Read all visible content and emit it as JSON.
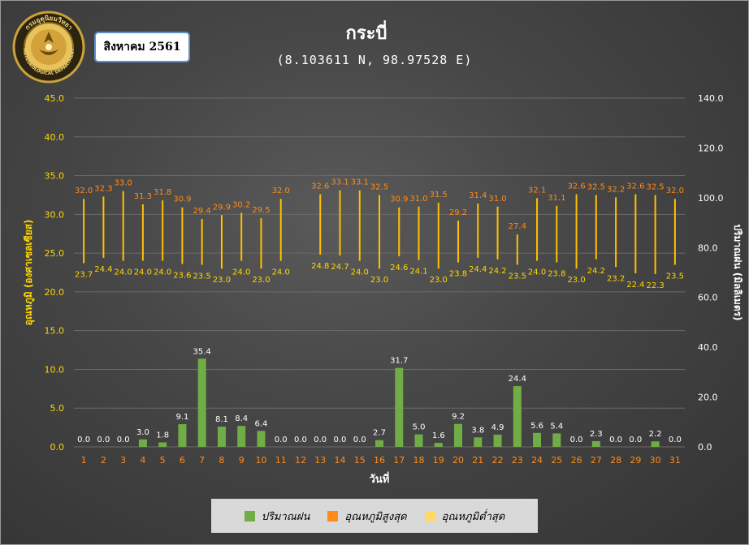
{
  "header": {
    "title": "กระบี่",
    "subtitle": "(8.103611 N, 98.97528 E)",
    "month_label": "สิงหาคม 2561",
    "logo_text_top": "กรมอุตุนิยมวิทยา",
    "logo_text_bottom": "METEOROLOGICAL DEPARTMENT"
  },
  "legend": {
    "items": [
      {
        "label": "ปริมาณฝน",
        "color": "#70ad47"
      },
      {
        "label": "อุณหภูมิสูงสุด",
        "color": "#ff8c1a"
      },
      {
        "label": "อุณหภูมิต่ำสุด",
        "color": "#ffd966"
      }
    ]
  },
  "chart_data": {
    "type": "bar",
    "xlabel": "วันที่",
    "ylabel_left": "อุณหภูมิ (องศาเซลเซียส)",
    "ylabel_right": "ปริมาณฝน (มิลลิเมตร)",
    "ylim_left": [
      0,
      45
    ],
    "ylim_right": [
      0,
      140
    ],
    "yticks_left": [
      "0.0",
      "5.0",
      "10.0",
      "15.0",
      "20.0",
      "25.0",
      "30.0",
      "35.0",
      "40.0",
      "45.0"
    ],
    "yticks_right": [
      "0.0",
      "20.0",
      "40.0",
      "60.0",
      "80.0",
      "100.0",
      "120.0",
      "140.0"
    ],
    "categories": [
      "1",
      "2",
      "3",
      "4",
      "5",
      "6",
      "7",
      "8",
      "9",
      "10",
      "11",
      "12",
      "13",
      "14",
      "15",
      "16",
      "17",
      "18",
      "19",
      "20",
      "21",
      "22",
      "23",
      "24",
      "25",
      "26",
      "27",
      "28",
      "29",
      "30",
      "31"
    ],
    "series": [
      {
        "name": "ปริมาณฝน",
        "axis": "right",
        "values": [
          0.0,
          0.0,
          0.0,
          3.0,
          1.8,
          9.1,
          35.4,
          8.1,
          8.4,
          6.4,
          0.0,
          0.0,
          0.0,
          0.0,
          0.0,
          2.7,
          31.7,
          5.0,
          1.6,
          9.2,
          3.8,
          4.9,
          24.4,
          5.6,
          5.4,
          0.0,
          2.3,
          0.0,
          0.0,
          2.2,
          0.0
        ],
        "labels": [
          "0.0",
          "0.0",
          "0.0",
          "3.0",
          "1.8",
          "9.1",
          "35.4",
          "8.1",
          "8.4",
          "6.4",
          "0.0",
          "0.0",
          "0.0",
          "0.0",
          "0.0",
          "2.7",
          "31.7",
          "5.0",
          "1.6",
          "9.2",
          "3.8",
          "4.9",
          "24.4",
          "5.6",
          "5.4",
          "0.0",
          "2.3",
          "0.0",
          "0.0",
          "2.2",
          "0.0"
        ]
      },
      {
        "name": "อุณหภูมิสูงสุด",
        "axis": "left",
        "values": [
          32.0,
          32.3,
          33.0,
          31.3,
          31.8,
          30.9,
          29.4,
          29.9,
          30.2,
          29.5,
          32.0,
          null,
          32.6,
          33.1,
          33.1,
          32.5,
          30.9,
          31.0,
          31.5,
          29.2,
          31.4,
          31.0,
          27.4,
          32.1,
          31.1,
          32.6,
          32.5,
          32.2,
          32.6,
          32.5,
          32.0
        ],
        "labels": [
          "32.0",
          "32.3",
          "33.0",
          "31.3",
          "31.8",
          "30.9",
          "29.4",
          "29.9",
          "30.2",
          "29.5",
          "32.0",
          "",
          "32.6",
          "33.1",
          "33.1",
          "32.5",
          "30.9",
          "31.0",
          "31.5",
          "29.2",
          "31.4",
          "31.0",
          "27.4",
          "32.1",
          "31.1",
          "32.6",
          "32.5",
          "32.2",
          "32.6",
          "32.5",
          "32.0"
        ]
      },
      {
        "name": "อุณหภูมิต่ำสุด",
        "axis": "left",
        "values": [
          23.7,
          24.4,
          24.0,
          24.0,
          24.0,
          23.6,
          23.5,
          23.0,
          24.0,
          23.0,
          24.0,
          null,
          24.8,
          24.7,
          24.0,
          23.0,
          24.6,
          24.1,
          23.0,
          23.8,
          24.4,
          24.2,
          23.5,
          24.0,
          23.8,
          23.0,
          24.2,
          23.2,
          22.4,
          22.3,
          23.5
        ],
        "labels": [
          "23.7",
          "24.4",
          "24.0",
          "24.0",
          "24.0",
          "23.6",
          "23.5",
          "23.0",
          "24.0",
          "23.0",
          "24.0",
          "",
          "24.8",
          "24.7",
          "24.0",
          "23.0",
          "24.6",
          "24.1",
          "23.0",
          "23.8",
          "24.4",
          "24.2",
          "23.5",
          "24.0",
          "23.8",
          "23.0",
          "24.2",
          "23.2",
          "22.4",
          "22.3",
          "23.5"
        ]
      }
    ],
    "colors": {
      "rain": "#70ad47",
      "tmax_label": "#ff8c1a",
      "tmin_label": "#ffd700",
      "range_line": "#ffc000",
      "tick_left": "#ffd700",
      "tick_right": "#ffffff",
      "category": "#ff8c1a",
      "grid": "#6a6a6a"
    },
    "grid": true,
    "legend_position": "bottom"
  }
}
